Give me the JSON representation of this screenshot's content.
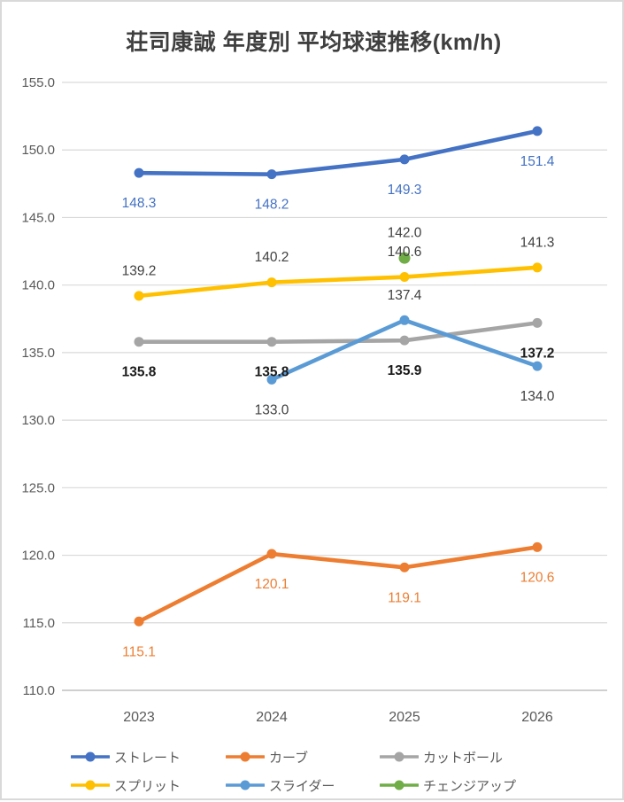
{
  "title": "荘司康誠 年度別 平均球速推移(km/h)",
  "chart_data": {
    "type": "line",
    "title": "荘司康誠 年度別 平均球速推移(km/h)",
    "categories": [
      "2023",
      "2024",
      "2025",
      "2026"
    ],
    "series": [
      {
        "id": "straight",
        "name": "ストレート",
        "color": "#4472C4",
        "values": [
          148.3,
          148.2,
          149.3,
          151.4
        ],
        "label_color": "#4472C4",
        "label_bold": false,
        "label_pos": [
          "below",
          "below",
          "below",
          "below"
        ]
      },
      {
        "id": "curve",
        "name": "カーブ",
        "color": "#ED7D31",
        "values": [
          115.1,
          120.1,
          119.1,
          120.6
        ],
        "label_color": "#ED7D31",
        "label_bold": false,
        "label_pos": [
          "below",
          "below",
          "below",
          "below"
        ]
      },
      {
        "id": "cutter",
        "name": "カットボール",
        "color": "#A5A5A5",
        "values": [
          135.8,
          135.8,
          135.9,
          137.2
        ],
        "label_color": "#1a1a1a",
        "label_bold": true,
        "label_pos": [
          "below",
          "below",
          "below",
          "below"
        ]
      },
      {
        "id": "split",
        "name": "スプリット",
        "color": "#FFC000",
        "values": [
          139.2,
          140.2,
          140.6,
          141.3
        ],
        "label_color": "#404040",
        "label_bold": false,
        "label_pos": [
          "above",
          "above",
          "above",
          "above"
        ]
      },
      {
        "id": "slider",
        "name": "スライダー",
        "color": "#5B9BD5",
        "values": [
          null,
          133.0,
          137.4,
          134.0
        ],
        "label_color": "#404040",
        "label_bold": false,
        "label_pos": [
          null,
          "below",
          "above",
          "below"
        ]
      },
      {
        "id": "changeup",
        "name": "チェンジアップ",
        "color": "#70AD47",
        "values": [
          null,
          null,
          142.0,
          null
        ],
        "label_color": "#404040",
        "label_bold": false,
        "label_pos": [
          null,
          null,
          "above",
          null
        ]
      }
    ],
    "ylim": [
      110.0,
      155.0
    ],
    "ytick_step": 5.0,
    "ytick_labels": [
      "110.0",
      "115.0",
      "120.0",
      "125.0",
      "130.0",
      "135.0",
      "140.0",
      "145.0",
      "150.0",
      "155.0"
    ],
    "grid": true,
    "legend_position": "bottom",
    "axis_color": "#595959",
    "gridline_color": "#d9d9d9"
  }
}
